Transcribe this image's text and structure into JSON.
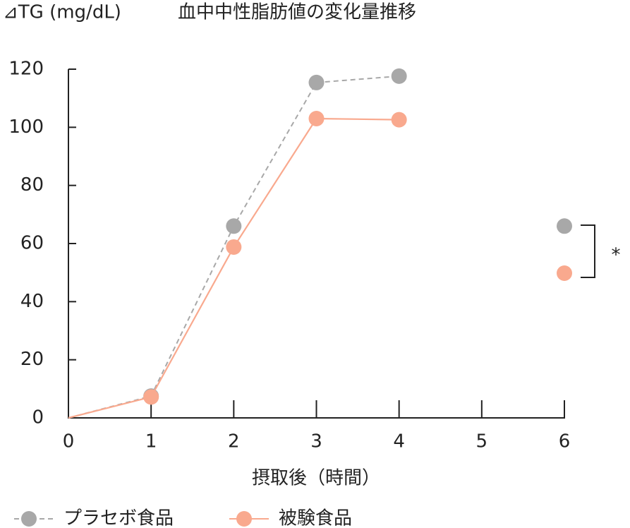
{
  "chart_data": {
    "type": "line",
    "title": "血中中性脂肪値の変化量推移",
    "y_label": "⊿TG (mg/dL)",
    "x_label": "摂取後（時間）",
    "x": [
      0,
      1,
      2,
      3,
      4,
      5,
      6
    ],
    "series": [
      {
        "name": "プラセボ食品",
        "color": "#a8a8a8",
        "dashed": true,
        "values": [
          0,
          7.5,
          66,
          115.4,
          117.6,
          null,
          66
        ]
      },
      {
        "name": "被験食品",
        "color": "#f9a98e",
        "dashed": false,
        "values": [
          0,
          7.2,
          58.8,
          103,
          102.6,
          null,
          49.8
        ]
      }
    ],
    "xlim": [
      0,
      6
    ],
    "xticks": [
      0,
      1,
      2,
      3,
      4,
      5,
      6
    ],
    "ylim": [
      0,
      120
    ],
    "yticks": [
      0,
      20,
      40,
      60,
      80,
      100,
      120
    ],
    "annotation": "*",
    "legend": "bottom"
  }
}
